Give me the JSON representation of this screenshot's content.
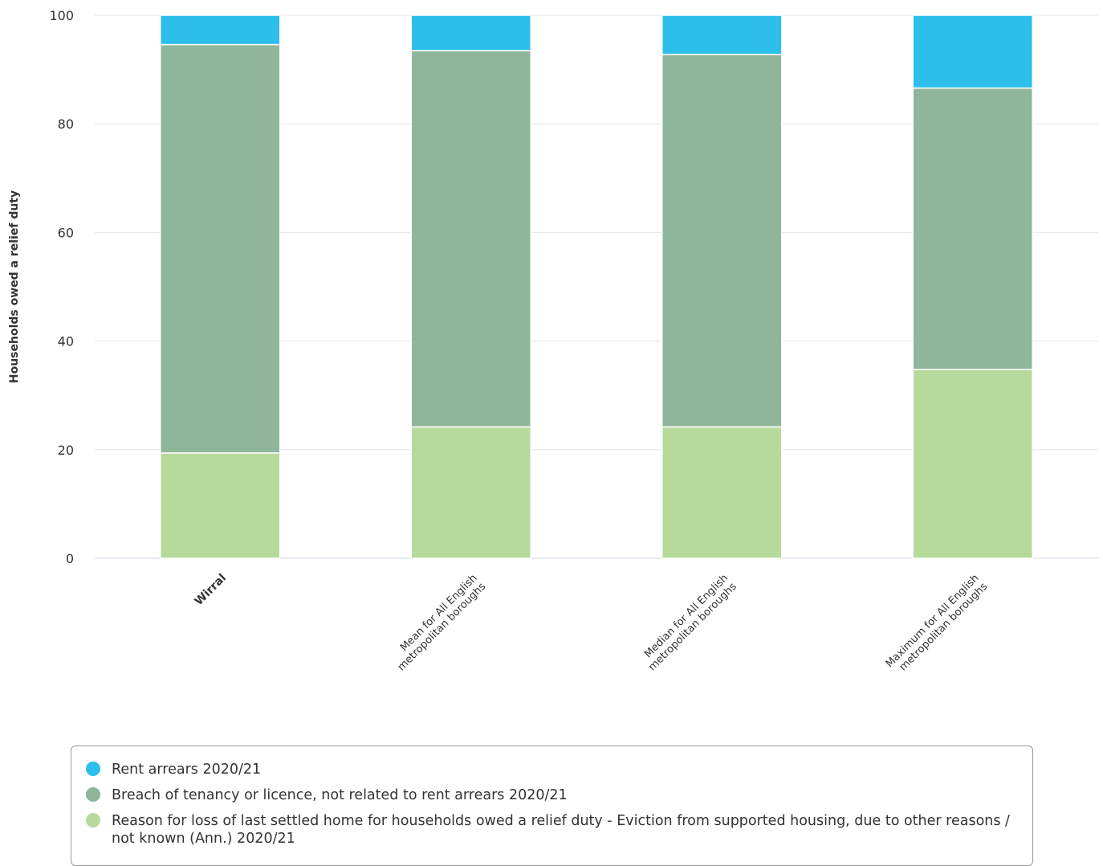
{
  "chart_data": {
    "type": "bar",
    "stacked": true,
    "ylabel": "Households owed a relief duty",
    "ylim": [
      0,
      100
    ],
    "yticks": [
      0,
      20,
      40,
      60,
      80,
      100
    ],
    "grid": true,
    "legend_position": "bottom",
    "categories": [
      "Wirral",
      "Mean for All English metropolitan boroughs",
      "Median for All English metropolitan boroughs",
      "Maximum for All English metropolitan boroughs"
    ],
    "category_lines": [
      [
        "Wirral"
      ],
      [
        "Mean for All English",
        "metropolitan boroughs"
      ],
      [
        "Median for All English",
        "metropolitan boroughs"
      ],
      [
        "Maximum for All English",
        "metropolitan boroughs"
      ]
    ],
    "highlight_category": "Wirral",
    "series": [
      {
        "name": "Reason for loss of last settled home for households owed a relief duty - Eviction from supported housing, due to other reasons / not known (Ann.) 2020/21",
        "color": "#b6da9c",
        "values": [
          19.4,
          24.2,
          24.2,
          34.8
        ]
      },
      {
        "name": "Breach of tenancy or licence, not related to rent arrears 2020/21",
        "color": "#8fb69a",
        "values": [
          75.2,
          69.3,
          68.6,
          51.8
        ]
      },
      {
        "name": "Rent arrears 2020/21",
        "color": "#2cbfea",
        "values": [
          5.4,
          6.5,
          7.2,
          13.4
        ]
      }
    ]
  },
  "legend": {
    "items": [
      {
        "label": "Rent arrears 2020/21",
        "color": "#2cbfea"
      },
      {
        "label": "Breach of tenancy or licence, not related to rent arrears 2020/21",
        "color": "#8fb69a"
      },
      {
        "label": "Reason for loss of last settled home for households owed a relief duty - Eviction from supported housing, due to other reasons / not known (Ann.) 2020/21",
        "color": "#b6da9c"
      }
    ]
  }
}
